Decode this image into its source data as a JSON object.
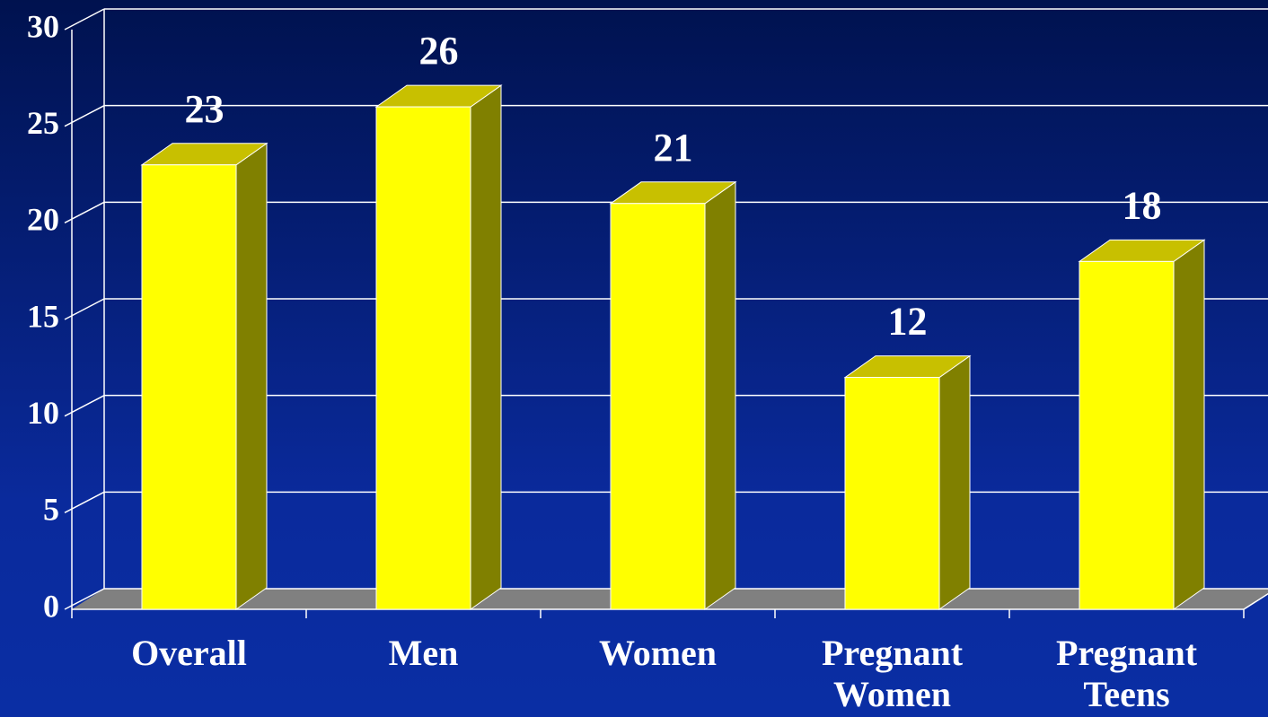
{
  "chart_data": {
    "type": "bar3d",
    "categories": [
      "Overall",
      "Men",
      "Women",
      "Pregnant Women",
      "Pregnant Teens"
    ],
    "values": [
      23,
      26,
      21,
      12,
      18
    ],
    "color": "#ffff00",
    "ylim": [
      0,
      30
    ],
    "yticks": [
      0,
      5,
      10,
      15,
      20,
      25,
      30
    ],
    "grid": true
  }
}
